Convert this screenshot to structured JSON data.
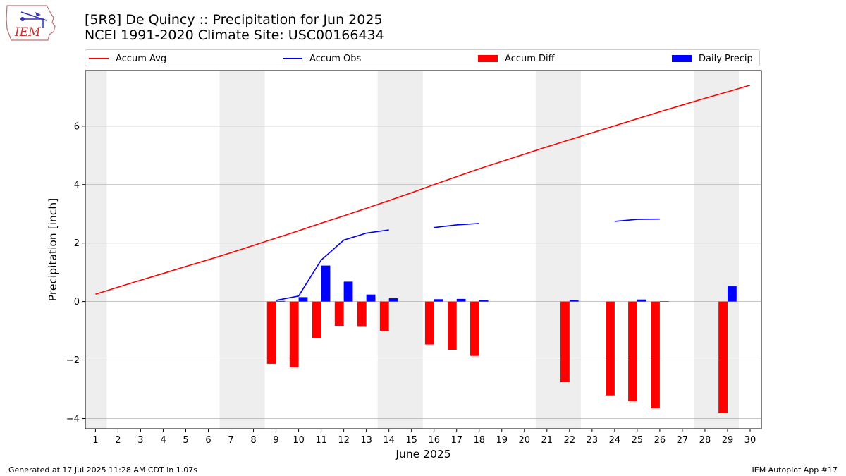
{
  "header": {
    "title_line1": "[5R8] De Quincy :: Precipitation for Jun 2025",
    "title_line2": "NCEI 1991-2020 Climate Site: USC00166434",
    "logo_text": "IEM",
    "logo_icon": "iowa-state-outline-weather-icon"
  },
  "legend": {
    "accum_avg": "Accum Avg",
    "accum_obs": "Accum Obs",
    "accum_diff": "Accum Diff",
    "daily_precip": "Daily Precip"
  },
  "colors": {
    "accum_avg": "#ff0000",
    "accum_obs": "#0000ff",
    "accum_diff": "#ff0000",
    "daily_precip": "#0000ff",
    "weekend_shade": "#eeeeee",
    "grid": "#b0b0b0"
  },
  "footer": {
    "left": "Generated at 17 Jul 2025 11:28 AM CDT in 1.07s",
    "right": "IEM Autoplot App #17"
  },
  "chart_data": {
    "type": "bar",
    "title": "[5R8] De Quincy :: Precipitation for Jun 2025",
    "subtitle": "NCEI 1991-2020 Climate Site: USC00166434",
    "xlabel": "June 2025",
    "ylabel": "Precipitation [inch]",
    "xlim": [
      0.55,
      30.5
    ],
    "ylim": [
      -4.35,
      7.9
    ],
    "yticks": [
      -4,
      -2,
      0,
      2,
      4,
      6
    ],
    "xticks": [
      1,
      2,
      3,
      4,
      5,
      6,
      7,
      8,
      9,
      10,
      11,
      12,
      13,
      14,
      15,
      16,
      17,
      18,
      19,
      20,
      21,
      22,
      23,
      24,
      25,
      26,
      27,
      28,
      29,
      30
    ],
    "grid": "horizontal",
    "legend_position": "top",
    "weekend_shading": [
      [
        0.5,
        1.5
      ],
      [
        6.5,
        8.5
      ],
      [
        13.5,
        15.5
      ],
      [
        20.5,
        22.5
      ],
      [
        27.5,
        29.5
      ]
    ],
    "days": [
      1,
      2,
      3,
      4,
      5,
      6,
      7,
      8,
      9,
      10,
      11,
      12,
      13,
      14,
      15,
      16,
      17,
      18,
      19,
      20,
      21,
      22,
      23,
      24,
      25,
      26,
      27,
      28,
      29,
      30
    ],
    "series": [
      {
        "name": "Accum Avg",
        "kind": "line",
        "values": [
          0.25,
          0.49,
          0.73,
          0.96,
          1.2,
          1.43,
          1.67,
          1.92,
          2.17,
          2.42,
          2.68,
          2.93,
          3.19,
          3.45,
          3.72,
          4.0,
          4.27,
          4.54,
          4.79,
          5.04,
          5.29,
          5.53,
          5.77,
          6.01,
          6.25,
          6.49,
          6.72,
          6.95,
          7.17,
          7.4
        ]
      },
      {
        "name": "Accum Obs",
        "kind": "line",
        "values": [
          null,
          null,
          null,
          null,
          null,
          null,
          null,
          null,
          0.04,
          0.19,
          1.42,
          2.1,
          2.34,
          2.45,
          null,
          2.53,
          2.62,
          2.67,
          null,
          null,
          null,
          null,
          null,
          2.74,
          2.81,
          2.82,
          null,
          null,
          null,
          null
        ]
      },
      {
        "name": "Accum Diff",
        "kind": "bar",
        "values": [
          null,
          null,
          null,
          null,
          null,
          null,
          null,
          null,
          -2.13,
          -2.25,
          -1.26,
          -0.83,
          -0.84,
          -1.0,
          null,
          -1.47,
          -1.65,
          -1.86,
          null,
          null,
          null,
          -2.76,
          null,
          -3.21,
          -3.41,
          -3.65,
          null,
          null,
          -3.82,
          null
        ]
      },
      {
        "name": "Daily Precip",
        "kind": "bar",
        "values": [
          null,
          null,
          null,
          null,
          null,
          null,
          null,
          null,
          0.02,
          0.15,
          1.23,
          0.68,
          0.24,
          0.11,
          null,
          0.08,
          0.09,
          0.05,
          null,
          null,
          null,
          0.05,
          null,
          null,
          0.07,
          0.01,
          null,
          null,
          0.52,
          null
        ]
      }
    ]
  }
}
